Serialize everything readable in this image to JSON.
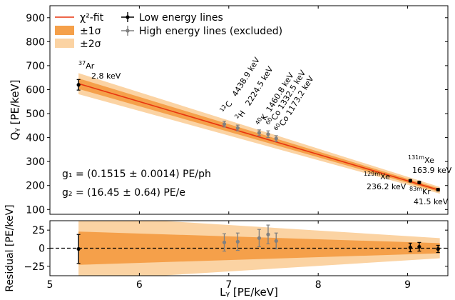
{
  "chart_data": [
    {
      "panel": "main",
      "type": "scatter",
      "xlabel": "Lᵧ [PE/keV]",
      "ylabel": "Qᵧ [PE/keV]",
      "xlim": [
        5,
        9.45
      ],
      "ylim": [
        80,
        950
      ],
      "xticks": [
        5,
        6,
        7,
        8,
        9
      ],
      "yticks": [
        100,
        200,
        300,
        400,
        500,
        600,
        700,
        800,
        900
      ],
      "fit": {
        "name": "χ²-fit",
        "color": "#e8350f",
        "points": [
          [
            5.32,
            625
          ],
          [
            9.36,
            180
          ]
        ],
        "band_1sigma": {
          "name": "±1σ",
          "color": "#f5a04a",
          "half_width_at_start": 22,
          "half_width_at_end": 7
        },
        "band_2sigma": {
          "name": "±2σ",
          "color": "#fbd3a3",
          "half_width_at_start": 44,
          "half_width_at_end": 14
        }
      },
      "series": [
        {
          "name": "Low energy lines",
          "color": "#000000",
          "points": [
            {
              "x": 5.32,
              "y": 620,
              "yerr": 22,
              "label_iso": "37",
              "label_el": "Ar",
              "label_energy": "2.8 keV"
            },
            {
              "x": 9.03,
              "y": 220,
              "yerr": 5,
              "label_iso": "129m",
              "label_el": "Xe",
              "label_energy": "236.2 keV"
            },
            {
              "x": 9.13,
              "y": 213,
              "yerr": 5,
              "label_iso": "131m",
              "label_el": "Xe",
              "label_energy": "163.9 keV"
            },
            {
              "x": 9.34,
              "y": 183,
              "yerr": 5,
              "label_iso": "83m",
              "label_el": "Kr",
              "label_energy": "41.5 keV"
            }
          ]
        },
        {
          "name": "High energy lines (excluded)",
          "color": "#808080",
          "points": [
            {
              "x": 6.95,
              "y": 456,
              "yerr": 12,
              "label_iso": "12",
              "label_el": "C",
              "label_energy": "4438.9 keV"
            },
            {
              "x": 7.1,
              "y": 440,
              "yerr": 12,
              "label_iso": "2",
              "label_el": "H",
              "label_energy": "2224.5 keV"
            },
            {
              "x": 7.34,
              "y": 420,
              "yerr": 12,
              "label_iso": "40",
              "label_el": "K",
              "label_energy": "1460.8 keV"
            },
            {
              "x": 7.44,
              "y": 414,
              "yerr": 14,
              "label_iso": "60",
              "label_el": "Co",
              "label_energy": "1332.5 keV"
            },
            {
              "x": 7.53,
              "y": 396,
              "yerr": 12,
              "label_iso": "60",
              "label_el": "Co",
              "label_energy": "1173.2 keV"
            }
          ]
        }
      ],
      "annotations": {
        "g1": "g₁ = (0.1515 ± 0.0014) PE/ph",
        "g2": "g₂ = (16.45 ± 0.64) PE/e"
      },
      "legend": {
        "placement": "top-left",
        "entries": [
          "χ²-fit",
          "±1σ",
          "±2σ",
          "Low energy lines",
          "High energy lines (excluded)"
        ]
      }
    },
    {
      "panel": "residual",
      "type": "scatter",
      "xlabel": "Lᵧ [PE/keV]",
      "ylabel": "Residual [PE/keV]",
      "xlim": [
        5,
        9.45
      ],
      "ylim": [
        -38,
        38
      ],
      "xticks": [
        5,
        6,
        7,
        8,
        9
      ],
      "yticks": [
        -25,
        0,
        25
      ],
      "zero_line": true,
      "band_1sigma": {
        "half_width_at_start": 23,
        "half_width_at_end": 7
      },
      "band_2sigma": {
        "half_width_at_start": 45,
        "half_width_at_end": 14
      },
      "series": [
        {
          "name": "Low energy lines",
          "color": "#000000",
          "points": [
            {
              "x": 5.32,
              "y": -1,
              "yerr": 20
            },
            {
              "x": 9.03,
              "y": 1,
              "yerr": 6
            },
            {
              "x": 9.13,
              "y": 2,
              "yerr": 6
            },
            {
              "x": 9.34,
              "y": -1,
              "yerr": 5
            }
          ]
        },
        {
          "name": "High energy lines (excluded)",
          "color": "#808080",
          "points": [
            {
              "x": 6.95,
              "y": 8,
              "yerr": 12
            },
            {
              "x": 7.1,
              "y": 9,
              "yerr": 12
            },
            {
              "x": 7.34,
              "y": 14,
              "yerr": 12
            },
            {
              "x": 7.44,
              "y": 19,
              "yerr": 13
            },
            {
              "x": 7.53,
              "y": 10,
              "yerr": 11
            }
          ]
        }
      ]
    }
  ]
}
